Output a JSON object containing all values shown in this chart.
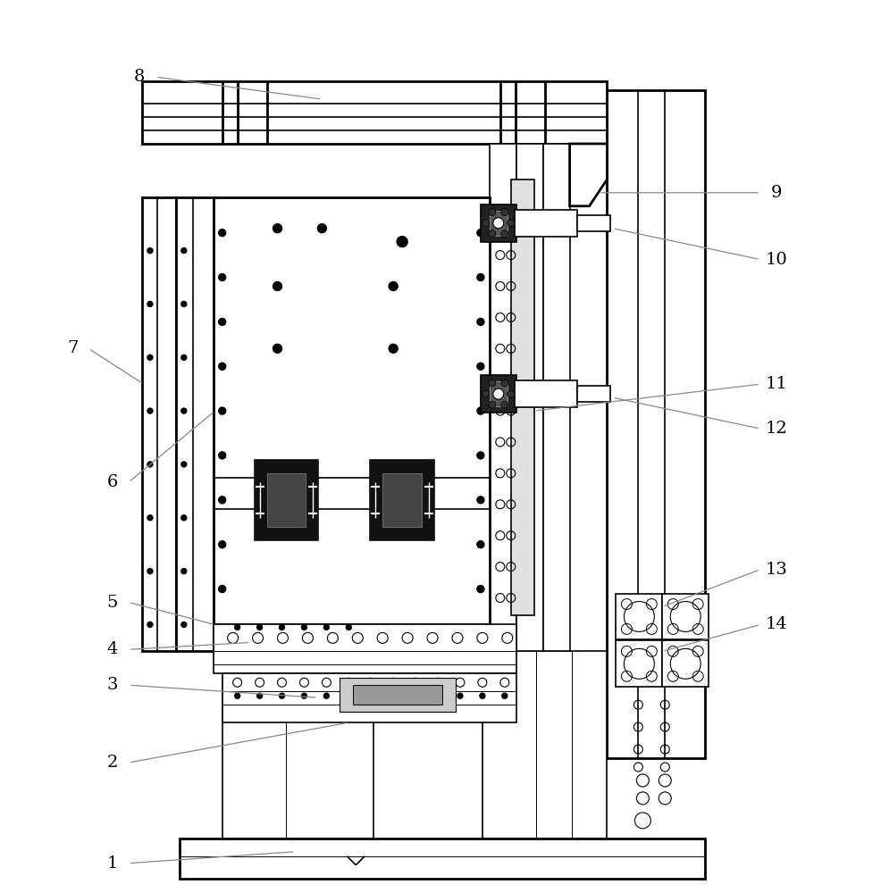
{
  "bg_color": "#ffffff",
  "lc": "#000000",
  "figsize": [
    9.87,
    10.0
  ],
  "dpi": 100
}
